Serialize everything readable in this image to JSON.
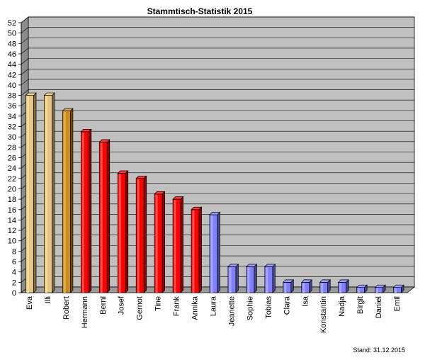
{
  "chart_data": {
    "type": "bar",
    "title": "Stammtisch-Statistik  2015",
    "footnote": "Stand: 31.12.2015",
    "categories": [
      "Eva",
      "Illi",
      "Robert",
      "Hermann",
      "Berni",
      "Josef",
      "Gernot",
      "Tine",
      "Frank",
      "Annika",
      "Laura",
      "Jeanette",
      "Sophie",
      "Tobias",
      "Clara",
      "Isa",
      "Konstantin",
      "Nadja",
      "Birgit",
      "Daniel",
      "Emil"
    ],
    "values": [
      38,
      38,
      35,
      31,
      29,
      23,
      22,
      19,
      18,
      16,
      15,
      5,
      5,
      5,
      2,
      2,
      2,
      2,
      1,
      1,
      1
    ],
    "bar_colors": [
      "#e8c878",
      "#e8c878",
      "#d08a10",
      "#ff0000",
      "#ff0000",
      "#ff0000",
      "#ff0000",
      "#ff0000",
      "#ff0000",
      "#ff0000",
      "#8080ff",
      "#8080ff",
      "#8080ff",
      "#8080ff",
      "#8080ff",
      "#8080ff",
      "#8080ff",
      "#8080ff",
      "#8080ff",
      "#8080ff",
      "#8080ff"
    ],
    "ylim": [
      0,
      52
    ],
    "y_ticks": [
      "0",
      "2",
      "4",
      "6",
      "8",
      "10",
      "12",
      "14",
      "16",
      "18",
      "20",
      "22",
      "24",
      "26",
      "28",
      "30",
      "32",
      "34",
      "36",
      "38",
      "40",
      "42",
      "44",
      "46",
      "48",
      "50",
      "52"
    ],
    "xlabel": "",
    "ylabel": "",
    "grid": true,
    "legend": "none",
    "plot_background": "#c0c0c0"
  }
}
